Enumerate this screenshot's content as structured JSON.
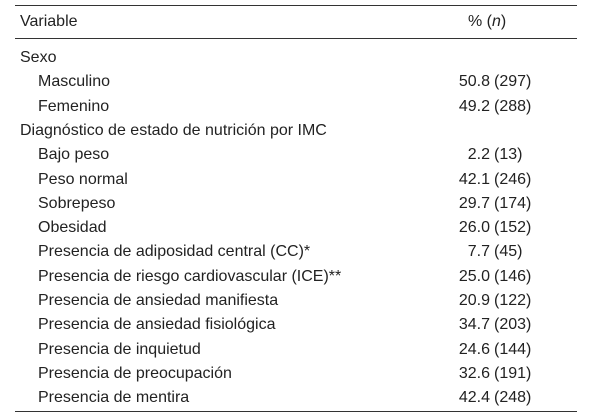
{
  "header": {
    "variable": "Variable",
    "value_prefix": "% (",
    "value_italic": "n",
    "value_suffix": ")"
  },
  "rows": [
    {
      "label": "Sexo"
    },
    {
      "label": "Masculino",
      "pct": "50.8",
      "n": "(297)"
    },
    {
      "label": "Femenino",
      "pct": "49.2",
      "n": "(288)"
    },
    {
      "label": "Diagnóstico de estado de nutrición por IMC"
    },
    {
      "label": "Bajo peso",
      "pct": "2.2",
      "n": "(13)"
    },
    {
      "label": "Peso normal",
      "pct": "42.1",
      "n": "(246)"
    },
    {
      "label": "Sobrepeso",
      "pct": "29.7",
      "n": "(174)"
    },
    {
      "label": "Obesidad",
      "pct": "26.0",
      "n": "(152)"
    },
    {
      "label": "Presencia de adiposidad central (CC)*",
      "pct": "7.7",
      "n": "(45)"
    },
    {
      "label": "Presencia de riesgo cardiovascular (ICE)**",
      "pct": "25.0",
      "n": "(146)"
    },
    {
      "label": "Presencia de ansiedad manifiesta",
      "pct": "20.9",
      "n": "(122)"
    },
    {
      "label": "Presencia de ansiedad fisiológica",
      "pct": "34.7",
      "n": "(203)"
    },
    {
      "label": "Presencia de inquietud",
      "pct": "24.6",
      "n": "(144)"
    },
    {
      "label": "Presencia de preocupación",
      "pct": "32.6",
      "n": "(191)"
    },
    {
      "label": "Presencia de mentira",
      "pct": "42.4",
      "n": "(248)"
    }
  ]
}
